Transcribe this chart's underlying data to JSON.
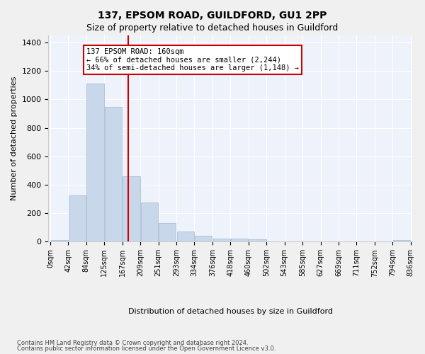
{
  "title": "137, EPSOM ROAD, GUILDFORD, GU1 2PP",
  "subtitle": "Size of property relative to detached houses in Guildford",
  "xlabel": "Distribution of detached houses by size in Guildford",
  "ylabel": "Number of detached properties",
  "bar_color": "#c8d8ea",
  "bar_edge_color": "#a0b8d0",
  "bin_labels": [
    "0sqm",
    "42sqm",
    "84sqm",
    "125sqm",
    "167sqm",
    "209sqm",
    "251sqm",
    "293sqm",
    "334sqm",
    "376sqm",
    "418sqm",
    "460sqm",
    "502sqm",
    "543sqm",
    "585sqm",
    "627sqm",
    "669sqm",
    "711sqm",
    "752sqm",
    "794sqm",
    "836sqm"
  ],
  "bar_heights": [
    10,
    325,
    1110,
    945,
    460,
    275,
    130,
    70,
    40,
    22,
    22,
    15,
    0,
    0,
    0,
    0,
    0,
    0,
    0,
    12
  ],
  "vline_x": 3.82,
  "vline_color": "#cc0000",
  "annotation_text": "137 EPSOM ROAD: 160sqm\n← 66% of detached houses are smaller (2,244)\n34% of semi-detached houses are larger (1,148) →",
  "annotation_box_color": "#cc0000",
  "ylim": [
    0,
    1450
  ],
  "background_color": "#eef2fa",
  "grid_color": "#ffffff",
  "footer_line1": "Contains HM Land Registry data © Crown copyright and database right 2024.",
  "footer_line2": "Contains public sector information licensed under the Open Government Licence v3.0."
}
